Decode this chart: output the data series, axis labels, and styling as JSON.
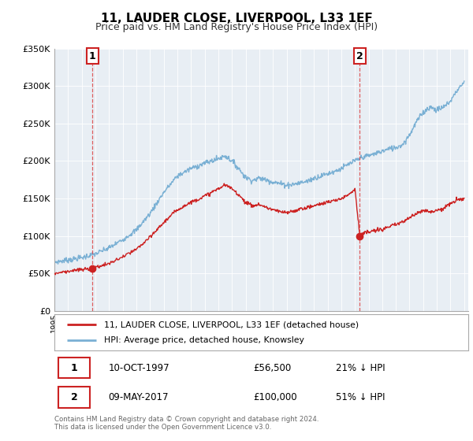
{
  "title": "11, LAUDER CLOSE, LIVERPOOL, L33 1EF",
  "subtitle": "Price paid vs. HM Land Registry's House Price Index (HPI)",
  "footer": "Contains HM Land Registry data © Crown copyright and database right 2024.\nThis data is licensed under the Open Government Licence v3.0.",
  "legend_label_red": "11, LAUDER CLOSE, LIVERPOOL, L33 1EF (detached house)",
  "legend_label_blue": "HPI: Average price, detached house, Knowsley",
  "transaction1_date": "10-OCT-1997",
  "transaction1_price": "£56,500",
  "transaction1_hpi": "21% ↓ HPI",
  "transaction1_year": 1997.78,
  "transaction1_value": 56500,
  "transaction2_date": "09-MAY-2017",
  "transaction2_price": "£100,000",
  "transaction2_hpi": "51% ↓ HPI",
  "transaction2_year": 2017.36,
  "transaction2_value": 100000,
  "ylim": [
    0,
    350000
  ],
  "xlim": [
    1995,
    2025
  ],
  "background_color": "#ffffff",
  "plot_bg_color": "#e8eef4",
  "grid_color": "#ffffff",
  "red_color": "#cc2222",
  "blue_color": "#7ab0d4",
  "dashed_color": "#dd4444",
  "title_fontsize": 11,
  "subtitle_fontsize": 9
}
